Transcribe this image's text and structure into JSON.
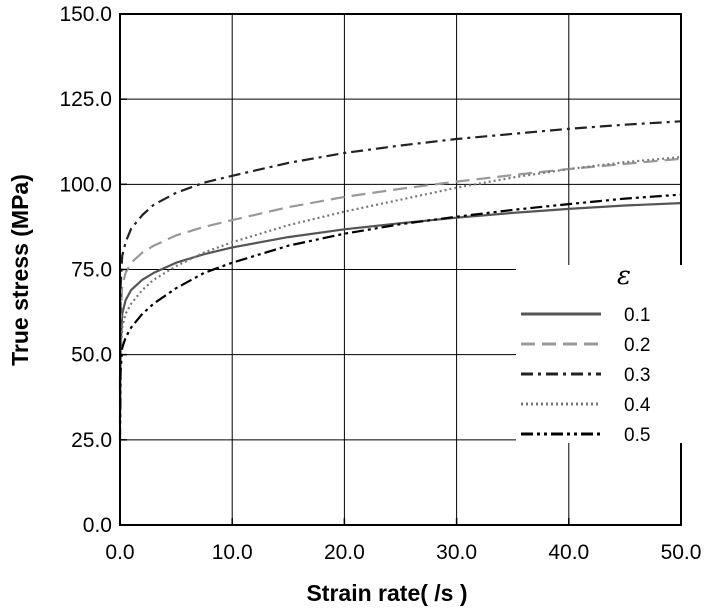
{
  "chart_data": {
    "type": "line",
    "title": "",
    "xlabel": "Strain rate( /s )",
    "ylabel": "True stress (MPa)",
    "xlim": [
      0,
      50
    ],
    "ylim": [
      0,
      150
    ],
    "xticks": [
      "0.0",
      "10.0",
      "20.0",
      "30.0",
      "40.0",
      "50.0"
    ],
    "yticks": [
      "0.0",
      "25.0",
      "50.0",
      "75.0",
      "100.0",
      "125.0",
      "150.0"
    ],
    "grid": true,
    "legend": {
      "title": "ε",
      "placement": "right"
    },
    "x": [
      0,
      0.05,
      0.2,
      0.5,
      1,
      2,
      3,
      5,
      7.5,
      10,
      15,
      20,
      25,
      30,
      35,
      40,
      45,
      50
    ],
    "series": [
      {
        "name": "0.1",
        "style": "solid",
        "color": "#555555",
        "values": [
          30,
          52,
          62,
          66,
          69,
          72,
          74,
          77,
          79.5,
          81.5,
          84.5,
          86.8,
          88.6,
          90.2,
          91.6,
          92.8,
          93.8,
          94.5
        ]
      },
      {
        "name": "0.2",
        "style": "dashed",
        "color": "#999999",
        "values": [
          35,
          60,
          70,
          74,
          77,
          80,
          82,
          85,
          87.5,
          89.5,
          93.3,
          96.3,
          98.7,
          100.8,
          102.7,
          104.5,
          106,
          107.5
        ]
      },
      {
        "name": "0.3",
        "style": "dashdot",
        "color": "#222222",
        "values": [
          40,
          70,
          79,
          83,
          87,
          91,
          94,
          97.5,
          100.5,
          102.5,
          106.3,
          109.2,
          111.4,
          113.3,
          114.8,
          116.3,
          117.5,
          118.5
        ]
      },
      {
        "name": "0.4",
        "style": "dotted",
        "color": "#777777",
        "values": [
          30,
          50,
          58,
          62,
          65,
          69,
          72,
          76,
          80,
          83,
          88,
          92,
          95.5,
          99,
          102,
          104.5,
          106.5,
          108
        ]
      },
      {
        "name": "0.5",
        "style": "dashdotdot",
        "color": "#000000",
        "values": [
          25,
          45,
          52,
          55,
          58,
          62,
          65,
          69.5,
          74,
          77,
          82,
          85.5,
          88.3,
          90.5,
          92.5,
          94.2,
          95.8,
          97
        ]
      }
    ]
  }
}
